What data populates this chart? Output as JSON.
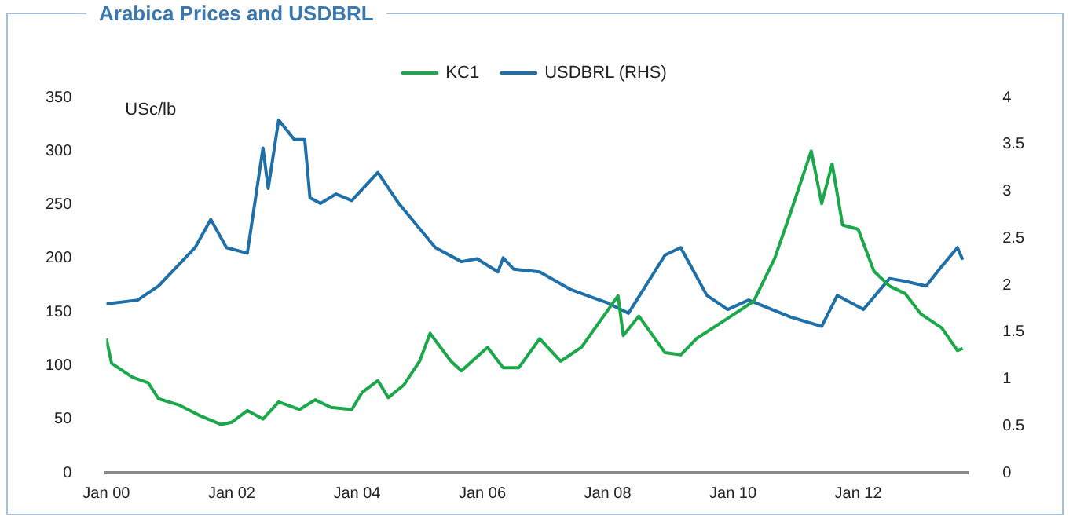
{
  "chart_data": {
    "type": "line",
    "title": "Arabica Prices and USDBRL",
    "ylabel": "USc/lb",
    "xlim": [
      "2000-01",
      "2013-10"
    ],
    "xticks": [
      {
        "value": "2000-01",
        "label": "Jan 00"
      },
      {
        "value": "2002-01",
        "label": "Jan 02"
      },
      {
        "value": "2004-01",
        "label": "Jan 04"
      },
      {
        "value": "2006-01",
        "label": "Jan 06"
      },
      {
        "value": "2008-01",
        "label": "Jan 08"
      },
      {
        "value": "2010-01",
        "label": "Jan 10"
      },
      {
        "value": "2012-01",
        "label": "Jan 12"
      }
    ],
    "ylim": [
      0,
      350
    ],
    "yticks": [
      0,
      50,
      100,
      150,
      200,
      250,
      300,
      350
    ],
    "y2lim": [
      0,
      4
    ],
    "y2ticks": [
      0,
      0.5,
      1,
      1.5,
      2,
      2.5,
      3,
      3.5,
      4
    ],
    "grid": false,
    "legend": "top",
    "marker": "none",
    "line_style": "solid",
    "series": [
      {
        "name": "KC1",
        "color": "#1aa84a",
        "x": [
          "2000-01",
          "2000-02",
          "2000-06",
          "2000-09",
          "2000-11",
          "2001-03",
          "2001-07",
          "2001-11",
          "2002-01",
          "2002-04",
          "2002-07",
          "2002-10",
          "2003-02",
          "2003-05",
          "2003-08",
          "2003-12",
          "2004-02",
          "2004-05",
          "2004-07",
          "2004-10",
          "2005-01",
          "2005-03",
          "2005-07",
          "2005-09",
          "2006-02",
          "2006-05",
          "2006-08",
          "2006-12",
          "2007-04",
          "2007-08",
          "2008-03",
          "2008-04",
          "2008-07",
          "2008-12",
          "2009-03",
          "2009-06",
          "2009-12",
          "2010-05",
          "2010-09",
          "2010-12",
          "2011-02",
          "2011-04",
          "2011-06",
          "2011-08",
          "2011-10",
          "2012-01",
          "2012-04",
          "2012-07",
          "2012-10",
          "2013-01",
          "2013-05",
          "2013-08",
          "2013-09"
        ],
        "values": [
          125,
          102,
          89,
          84,
          69,
          63,
          53,
          45,
          47,
          58,
          50,
          66,
          59,
          68,
          61,
          59,
          75,
          86,
          70,
          82,
          104,
          130,
          104,
          95,
          117,
          98,
          98,
          125,
          104,
          117,
          165,
          128,
          146,
          112,
          110,
          125,
          144,
          160,
          200,
          242,
          271,
          300,
          251,
          288,
          231,
          227,
          188,
          174,
          167,
          148,
          135,
          114,
          116
        ]
      },
      {
        "name": "USDBRL (RHS)",
        "color": "#1f6fa8",
        "axis": "y2",
        "x": [
          "2000-01",
          "2000-07",
          "2000-11",
          "2001-06",
          "2001-09",
          "2001-12",
          "2002-04",
          "2002-07",
          "2002-08",
          "2002-10",
          "2003-01",
          "2003-03",
          "2003-04",
          "2003-06",
          "2003-09",
          "2003-12",
          "2004-05",
          "2004-09",
          "2005-04",
          "2005-09",
          "2005-12",
          "2006-04",
          "2006-05",
          "2006-07",
          "2006-12",
          "2007-06",
          "2008-01",
          "2008-05",
          "2008-12",
          "2009-03",
          "2009-08",
          "2009-12",
          "2010-04",
          "2010-12",
          "2011-06",
          "2011-09",
          "2012-02",
          "2012-07",
          "2012-10",
          "2013-02",
          "2013-05",
          "2013-08",
          "2013-09"
        ],
        "values": [
          1.8,
          1.84,
          1.99,
          2.4,
          2.7,
          2.4,
          2.34,
          3.46,
          3.03,
          3.76,
          3.55,
          3.55,
          2.93,
          2.87,
          2.97,
          2.9,
          3.2,
          2.87,
          2.4,
          2.25,
          2.28,
          2.14,
          2.29,
          2.17,
          2.14,
          1.95,
          1.81,
          1.7,
          2.32,
          2.4,
          1.89,
          1.74,
          1.84,
          1.66,
          1.56,
          1.89,
          1.74,
          2.07,
          2.04,
          1.99,
          2.2,
          2.4,
          2.27
        ]
      }
    ]
  }
}
